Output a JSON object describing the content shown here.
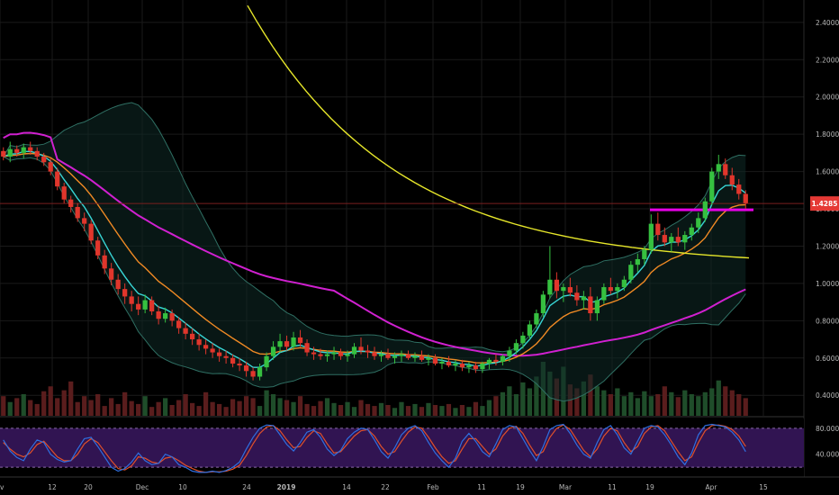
{
  "chart_data": {
    "type": "candlestick",
    "price_axis": {
      "ticks": [
        0.4,
        0.6,
        0.8,
        1.0,
        1.2,
        1.4,
        1.6,
        1.8,
        2.0,
        2.2,
        2.4
      ],
      "tick_labels": [
        "0.4000",
        "0.6000",
        "0.8000",
        "1.0000",
        "1.2000",
        "1.4000",
        "1.6000",
        "1.8000",
        "2.0000",
        "2.2000",
        "2.4000"
      ],
      "range": [
        0.29,
        2.52
      ]
    },
    "x_axis": {
      "labels": [
        "v",
        "12",
        "20",
        "Dec",
        "10",
        "24",
        "2019",
        "14",
        "22",
        "Feb",
        "11",
        "19",
        "Mar",
        "11",
        "19",
        "Apr",
        "15"
      ],
      "bold_labels": [
        "2019"
      ]
    },
    "last_price": {
      "value": 1.4285,
      "label": "1.4285",
      "color": "#e53935"
    },
    "resistance_level": {
      "value": 1.395,
      "color": "#e600e6"
    },
    "candles": [
      [
        1.71,
        1.73,
        1.66,
        1.68
      ],
      [
        1.68,
        1.76,
        1.65,
        1.72
      ],
      [
        1.72,
        1.74,
        1.68,
        1.7
      ],
      [
        1.7,
        1.75,
        1.67,
        1.73
      ],
      [
        1.73,
        1.76,
        1.69,
        1.71
      ],
      [
        1.71,
        1.73,
        1.66,
        1.68
      ],
      [
        1.68,
        1.7,
        1.63,
        1.65
      ],
      [
        1.65,
        1.67,
        1.58,
        1.6
      ],
      [
        1.6,
        1.62,
        1.5,
        1.52
      ],
      [
        1.52,
        1.54,
        1.43,
        1.45
      ],
      [
        1.45,
        1.47,
        1.38,
        1.41
      ],
      [
        1.41,
        1.43,
        1.33,
        1.35
      ],
      [
        1.35,
        1.38,
        1.28,
        1.32
      ],
      [
        1.32,
        1.34,
        1.21,
        1.23
      ],
      [
        1.23,
        1.25,
        1.13,
        1.15
      ],
      [
        1.15,
        1.18,
        1.05,
        1.08
      ],
      [
        1.08,
        1.11,
        0.99,
        1.02
      ],
      [
        1.02,
        1.05,
        0.94,
        0.97
      ],
      [
        0.97,
        1.0,
        0.89,
        0.93
      ],
      [
        0.93,
        0.96,
        0.85,
        0.89
      ],
      [
        0.89,
        0.93,
        0.83,
        0.86
      ],
      [
        0.86,
        0.94,
        0.84,
        0.91
      ],
      [
        0.91,
        0.93,
        0.83,
        0.85
      ],
      [
        0.85,
        0.88,
        0.78,
        0.81
      ],
      [
        0.81,
        0.87,
        0.79,
        0.84
      ],
      [
        0.84,
        0.86,
        0.77,
        0.8
      ],
      [
        0.8,
        0.82,
        0.73,
        0.76
      ],
      [
        0.76,
        0.79,
        0.7,
        0.73
      ],
      [
        0.73,
        0.76,
        0.67,
        0.7
      ],
      [
        0.7,
        0.73,
        0.64,
        0.67
      ],
      [
        0.67,
        0.7,
        0.62,
        0.65
      ],
      [
        0.65,
        0.68,
        0.6,
        0.63
      ],
      [
        0.63,
        0.65,
        0.58,
        0.61
      ],
      [
        0.61,
        0.64,
        0.57,
        0.6
      ],
      [
        0.6,
        0.62,
        0.55,
        0.57
      ],
      [
        0.57,
        0.6,
        0.53,
        0.56
      ],
      [
        0.56,
        0.58,
        0.5,
        0.53
      ],
      [
        0.53,
        0.55,
        0.48,
        0.5
      ],
      [
        0.5,
        0.57,
        0.48,
        0.55
      ],
      [
        0.55,
        0.63,
        0.53,
        0.61
      ],
      [
        0.61,
        0.69,
        0.59,
        0.66
      ],
      [
        0.66,
        0.73,
        0.63,
        0.69
      ],
      [
        0.69,
        0.72,
        0.64,
        0.66
      ],
      [
        0.66,
        0.74,
        0.64,
        0.71
      ],
      [
        0.71,
        0.75,
        0.66,
        0.68
      ],
      [
        0.68,
        0.7,
        0.61,
        0.63
      ],
      [
        0.63,
        0.66,
        0.59,
        0.62
      ],
      [
        0.62,
        0.65,
        0.59,
        0.61
      ],
      [
        0.61,
        0.64,
        0.58,
        0.62
      ],
      [
        0.62,
        0.66,
        0.59,
        0.63
      ],
      [
        0.63,
        0.65,
        0.59,
        0.61
      ],
      [
        0.61,
        0.64,
        0.58,
        0.62
      ],
      [
        0.62,
        0.68,
        0.6,
        0.66
      ],
      [
        0.66,
        0.71,
        0.62,
        0.64
      ],
      [
        0.64,
        0.67,
        0.6,
        0.63
      ],
      [
        0.63,
        0.66,
        0.59,
        0.61
      ],
      [
        0.61,
        0.64,
        0.58,
        0.62
      ],
      [
        0.62,
        0.65,
        0.59,
        0.6
      ],
      [
        0.6,
        0.63,
        0.57,
        0.61
      ],
      [
        0.61,
        0.64,
        0.58,
        0.62
      ],
      [
        0.62,
        0.64,
        0.59,
        0.6
      ],
      [
        0.6,
        0.63,
        0.58,
        0.61
      ],
      [
        0.61,
        0.64,
        0.58,
        0.59
      ],
      [
        0.59,
        0.62,
        0.56,
        0.6
      ],
      [
        0.6,
        0.62,
        0.56,
        0.57
      ],
      [
        0.57,
        0.6,
        0.54,
        0.58
      ],
      [
        0.58,
        0.61,
        0.55,
        0.56
      ],
      [
        0.56,
        0.59,
        0.53,
        0.57
      ],
      [
        0.57,
        0.59,
        0.53,
        0.55
      ],
      [
        0.55,
        0.58,
        0.52,
        0.56
      ],
      [
        0.56,
        0.58,
        0.52,
        0.54
      ],
      [
        0.54,
        0.58,
        0.52,
        0.57
      ],
      [
        0.57,
        0.6,
        0.54,
        0.59
      ],
      [
        0.59,
        0.62,
        0.56,
        0.58
      ],
      [
        0.58,
        0.62,
        0.56,
        0.61
      ],
      [
        0.61,
        0.66,
        0.58,
        0.64
      ],
      [
        0.64,
        0.7,
        0.62,
        0.68
      ],
      [
        0.68,
        0.74,
        0.65,
        0.72
      ],
      [
        0.72,
        0.8,
        0.7,
        0.78
      ],
      [
        0.78,
        0.86,
        0.76,
        0.84
      ],
      [
        0.84,
        0.96,
        0.82,
        0.94
      ],
      [
        0.94,
        1.2,
        0.92,
        1.02
      ],
      [
        1.02,
        1.06,
        0.92,
        0.96
      ],
      [
        0.96,
        1.0,
        0.9,
        0.98
      ],
      [
        0.98,
        1.03,
        0.93,
        0.95
      ],
      [
        0.95,
        0.99,
        0.88,
        0.91
      ],
      [
        0.91,
        0.96,
        0.86,
        0.93
      ],
      [
        0.93,
        0.98,
        0.8,
        0.84
      ],
      [
        0.84,
        0.93,
        0.8,
        0.91
      ],
      [
        0.91,
        1.0,
        0.89,
        0.98
      ],
      [
        0.98,
        1.03,
        0.94,
        0.96
      ],
      [
        0.96,
        1.0,
        0.92,
        0.98
      ],
      [
        0.98,
        1.04,
        0.96,
        1.02
      ],
      [
        1.02,
        1.12,
        1.0,
        1.1
      ],
      [
        1.1,
        1.16,
        1.06,
        1.13
      ],
      [
        1.13,
        1.2,
        1.1,
        1.18
      ],
      [
        1.18,
        1.37,
        1.16,
        1.32
      ],
      [
        1.32,
        1.38,
        1.23,
        1.26
      ],
      [
        1.26,
        1.3,
        1.2,
        1.22
      ],
      [
        1.22,
        1.27,
        1.17,
        1.25
      ],
      [
        1.25,
        1.3,
        1.2,
        1.22
      ],
      [
        1.22,
        1.28,
        1.18,
        1.26
      ],
      [
        1.26,
        1.32,
        1.23,
        1.3
      ],
      [
        1.3,
        1.38,
        1.27,
        1.35
      ],
      [
        1.35,
        1.46,
        1.33,
        1.44
      ],
      [
        1.44,
        1.62,
        1.42,
        1.6
      ],
      [
        1.6,
        1.69,
        1.56,
        1.64
      ],
      [
        1.64,
        1.67,
        1.56,
        1.58
      ],
      [
        1.58,
        1.62,
        1.5,
        1.53
      ],
      [
        1.53,
        1.56,
        1.45,
        1.48
      ],
      [
        1.48,
        1.5,
        1.4,
        1.43
      ]
    ],
    "volume": [
      20,
      14,
      18,
      22,
      16,
      12,
      25,
      30,
      18,
      26,
      35,
      14,
      20,
      16,
      22,
      10,
      18,
      12,
      24,
      15,
      12,
      20,
      9,
      14,
      18,
      11,
      16,
      22,
      13,
      10,
      24,
      14,
      12,
      9,
      17,
      15,
      20,
      18,
      10,
      26,
      22,
      18,
      16,
      14,
      20,
      12,
      10,
      15,
      18,
      13,
      11,
      14,
      9,
      16,
      12,
      10,
      13,
      11,
      8,
      14,
      10,
      12,
      9,
      13,
      11,
      10,
      12,
      8,
      11,
      9,
      14,
      10,
      16,
      20,
      24,
      30,
      22,
      34,
      28,
      40,
      55,
      45,
      38,
      50,
      32,
      28,
      35,
      42,
      30,
      26,
      22,
      28,
      20,
      24,
      18,
      25,
      20,
      22,
      30,
      24,
      19,
      26,
      22,
      20,
      24,
      28,
      36,
      30,
      26,
      22,
      18
    ],
    "stoch_axis": {
      "ticks": [
        80,
        40
      ],
      "tick_labels": [
        "80.0000",
        "40.0000"
      ],
      "range": [
        5,
        95
      ],
      "band": [
        20,
        80
      ]
    },
    "stoch_k": [
      62,
      45,
      35,
      30,
      48,
      62,
      58,
      40,
      32,
      28,
      30,
      48,
      64,
      66,
      52,
      36,
      20,
      14,
      18,
      28,
      42,
      30,
      24,
      26,
      40,
      36,
      24,
      20,
      14,
      12,
      12,
      14,
      12,
      15,
      20,
      28,
      48,
      66,
      80,
      85,
      84,
      70,
      55,
      45,
      58,
      74,
      78,
      66,
      48,
      38,
      46,
      64,
      74,
      80,
      78,
      62,
      44,
      34,
      50,
      70,
      80,
      84,
      76,
      58,
      42,
      30,
      20,
      34,
      60,
      72,
      60,
      44,
      36,
      56,
      78,
      84,
      82,
      64,
      46,
      30,
      52,
      78,
      84,
      86,
      72,
      54,
      40,
      34,
      58,
      78,
      84,
      70,
      50,
      40,
      60,
      80,
      84,
      82,
      70,
      54,
      36,
      24,
      42,
      70,
      84,
      86,
      84,
      82,
      74,
      62,
      44
    ],
    "stoch_d": [
      58,
      48,
      40,
      36,
      42,
      55,
      60,
      48,
      36,
      30,
      30,
      40,
      56,
      64,
      58,
      44,
      30,
      18,
      16,
      22,
      36,
      34,
      28,
      26,
      34,
      36,
      30,
      23,
      18,
      14,
      12,
      13,
      13,
      14,
      17,
      23,
      38,
      56,
      72,
      82,
      84,
      76,
      62,
      50,
      52,
      66,
      76,
      72,
      56,
      42,
      44,
      56,
      68,
      76,
      78,
      68,
      52,
      40,
      44,
      60,
      74,
      82,
      80,
      66,
      50,
      36,
      26,
      30,
      48,
      64,
      64,
      52,
      40,
      48,
      68,
      80,
      83,
      72,
      54,
      38,
      44,
      66,
      80,
      85,
      78,
      62,
      46,
      36,
      48,
      68,
      80,
      76,
      58,
      44,
      52,
      72,
      82,
      84,
      76,
      60,
      44,
      30,
      36,
      58,
      76,
      84,
      85,
      83,
      78,
      68,
      52
    ]
  }
}
